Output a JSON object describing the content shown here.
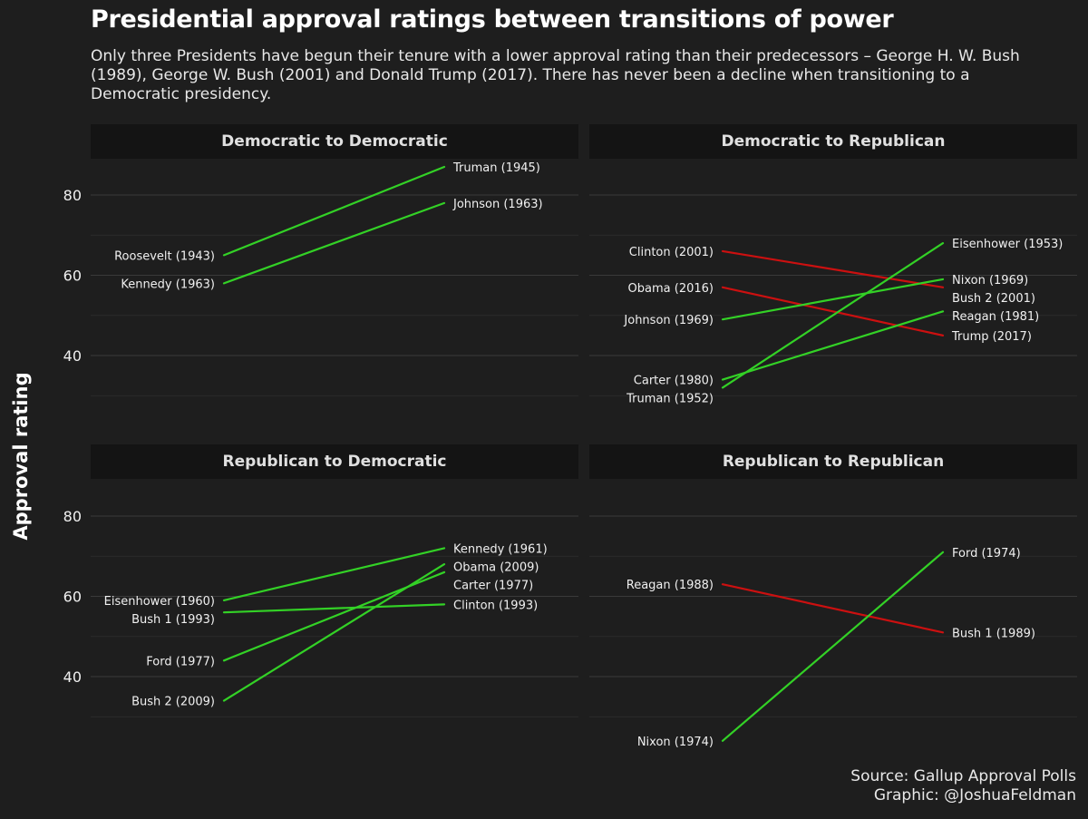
{
  "title": "Presidential approval ratings between transitions of power",
  "subtitle": "Only three Presidents have begun their tenure with a lower approval rating than their predecessors – George H. W. Bush (1989), George W. Bush (2001) and Donald Trump (2017). There has never been a decline when transitioning to a Democratic presidency.",
  "caption": {
    "source": "Source: Gallup Approval Polls",
    "graphic": "Graphic: @JoshuaFeldman"
  },
  "colors": {
    "increase": "#33d126",
    "decrease": "#cc1010",
    "background": "#1e1e1e",
    "strip": "#141414",
    "grid": "#343434"
  },
  "chart_data": {
    "type": "line",
    "ylabel": "Approval rating",
    "yticks": [
      40,
      60,
      80
    ],
    "ylim": [
      28,
      90
    ],
    "grid": true,
    "panels": [
      {
        "title": "Democratic to Democratic",
        "series": [
          {
            "from": "Roosevelt (1943)",
            "to": "Truman (1945)",
            "values": [
              65,
              87
            ],
            "trend": "increase"
          },
          {
            "from": "Kennedy (1963)",
            "to": "Johnson (1963)",
            "values": [
              58,
              78
            ],
            "trend": "increase"
          }
        ]
      },
      {
        "title": "Democratic to Republican",
        "series": [
          {
            "from": "Clinton (2001)",
            "to": "Bush 2 (2001)",
            "values": [
              66,
              57
            ],
            "trend": "decrease"
          },
          {
            "from": "Obama (2016)",
            "to": "Trump (2017)",
            "values": [
              57,
              45
            ],
            "trend": "decrease"
          },
          {
            "from": "Johnson (1969)",
            "to": "Nixon (1969)",
            "values": [
              49,
              59
            ],
            "trend": "increase"
          },
          {
            "from": "Carter (1980)",
            "to": "Reagan (1981)",
            "values": [
              34,
              51
            ],
            "trend": "increase"
          },
          {
            "from": "Truman (1952)",
            "to": "Eisenhower (1953)",
            "values": [
              32,
              68
            ],
            "trend": "increase"
          }
        ]
      },
      {
        "title": "Republican to Democratic",
        "series": [
          {
            "from": "Eisenhower (1960)",
            "to": "Kennedy (1961)",
            "values": [
              59,
              72
            ],
            "trend": "increase"
          },
          {
            "from": "Bush 1 (1993)",
            "to": "Clinton (1993)",
            "values": [
              56,
              58
            ],
            "trend": "increase"
          },
          {
            "from": "Ford (1977)",
            "to": "Carter (1977)",
            "values": [
              44,
              66
            ],
            "trend": "increase"
          },
          {
            "from": "Bush 2 (2009)",
            "to": "Obama (2009)",
            "values": [
              34,
              68
            ],
            "trend": "increase"
          }
        ]
      },
      {
        "title": "Republican to Republican",
        "series": [
          {
            "from": "Reagan (1988)",
            "to": "Bush 1 (1989)",
            "values": [
              63,
              51
            ],
            "trend": "decrease"
          },
          {
            "from": "Nixon (1974)",
            "to": "Ford (1974)",
            "values": [
              24,
              71
            ],
            "trend": "increase"
          }
        ]
      }
    ]
  }
}
